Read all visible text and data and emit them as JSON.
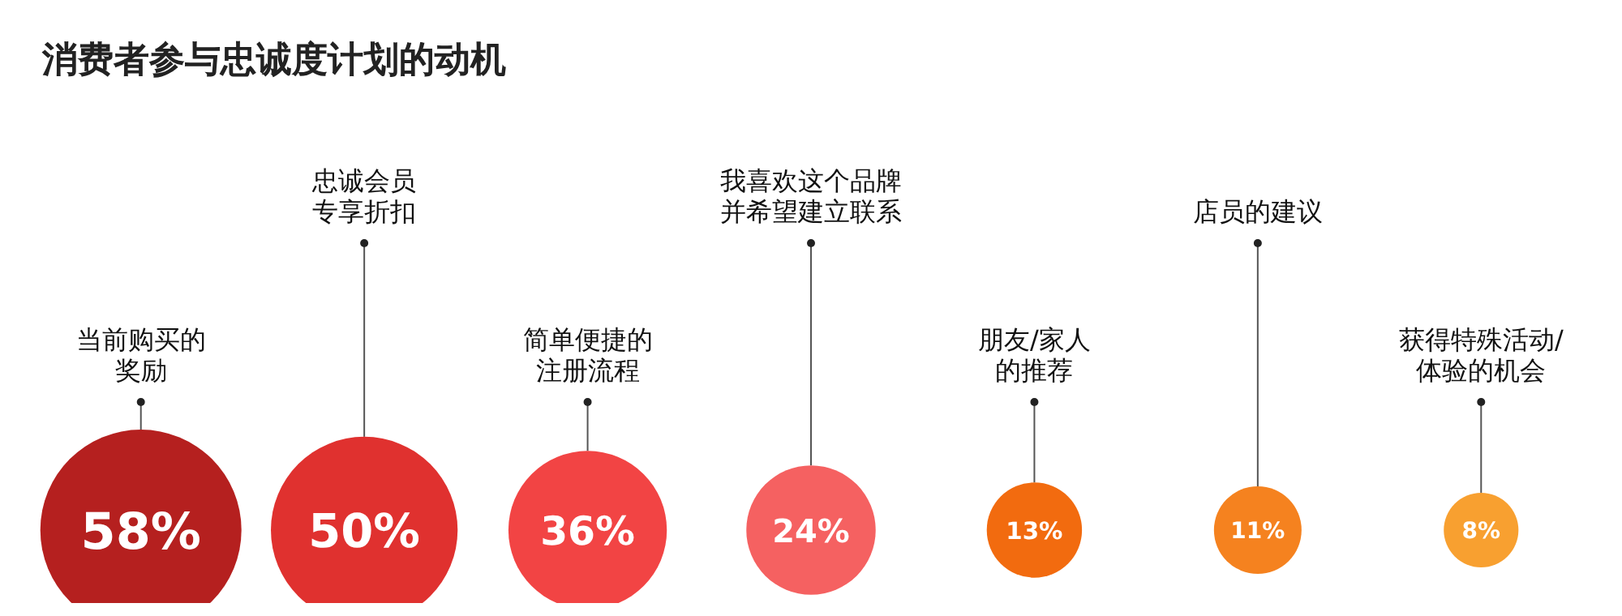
{
  "chart_data": {
    "type": "other",
    "title": "消费者参与忠诚度计划的动机",
    "categories": [
      "当前购买的奖励",
      "忠诚会员专享折扣",
      "简单便捷的注册流程",
      "我喜欢这个品牌并希望建立联系",
      "朋友/家人的推荐",
      "店员的建议",
      "获得特殊活动/体验的机会"
    ],
    "values": [
      58,
      50,
      36,
      24,
      13,
      11,
      8
    ],
    "value_labels": [
      "58%",
      "50%",
      "36%",
      "24%",
      "13%",
      "11%",
      "8%"
    ],
    "colors": [
      "#b5201f",
      "#e0312f",
      "#f24444",
      "#f56161",
      "#f26b0f",
      "#f5821f",
      "#f8a030"
    ]
  }
}
